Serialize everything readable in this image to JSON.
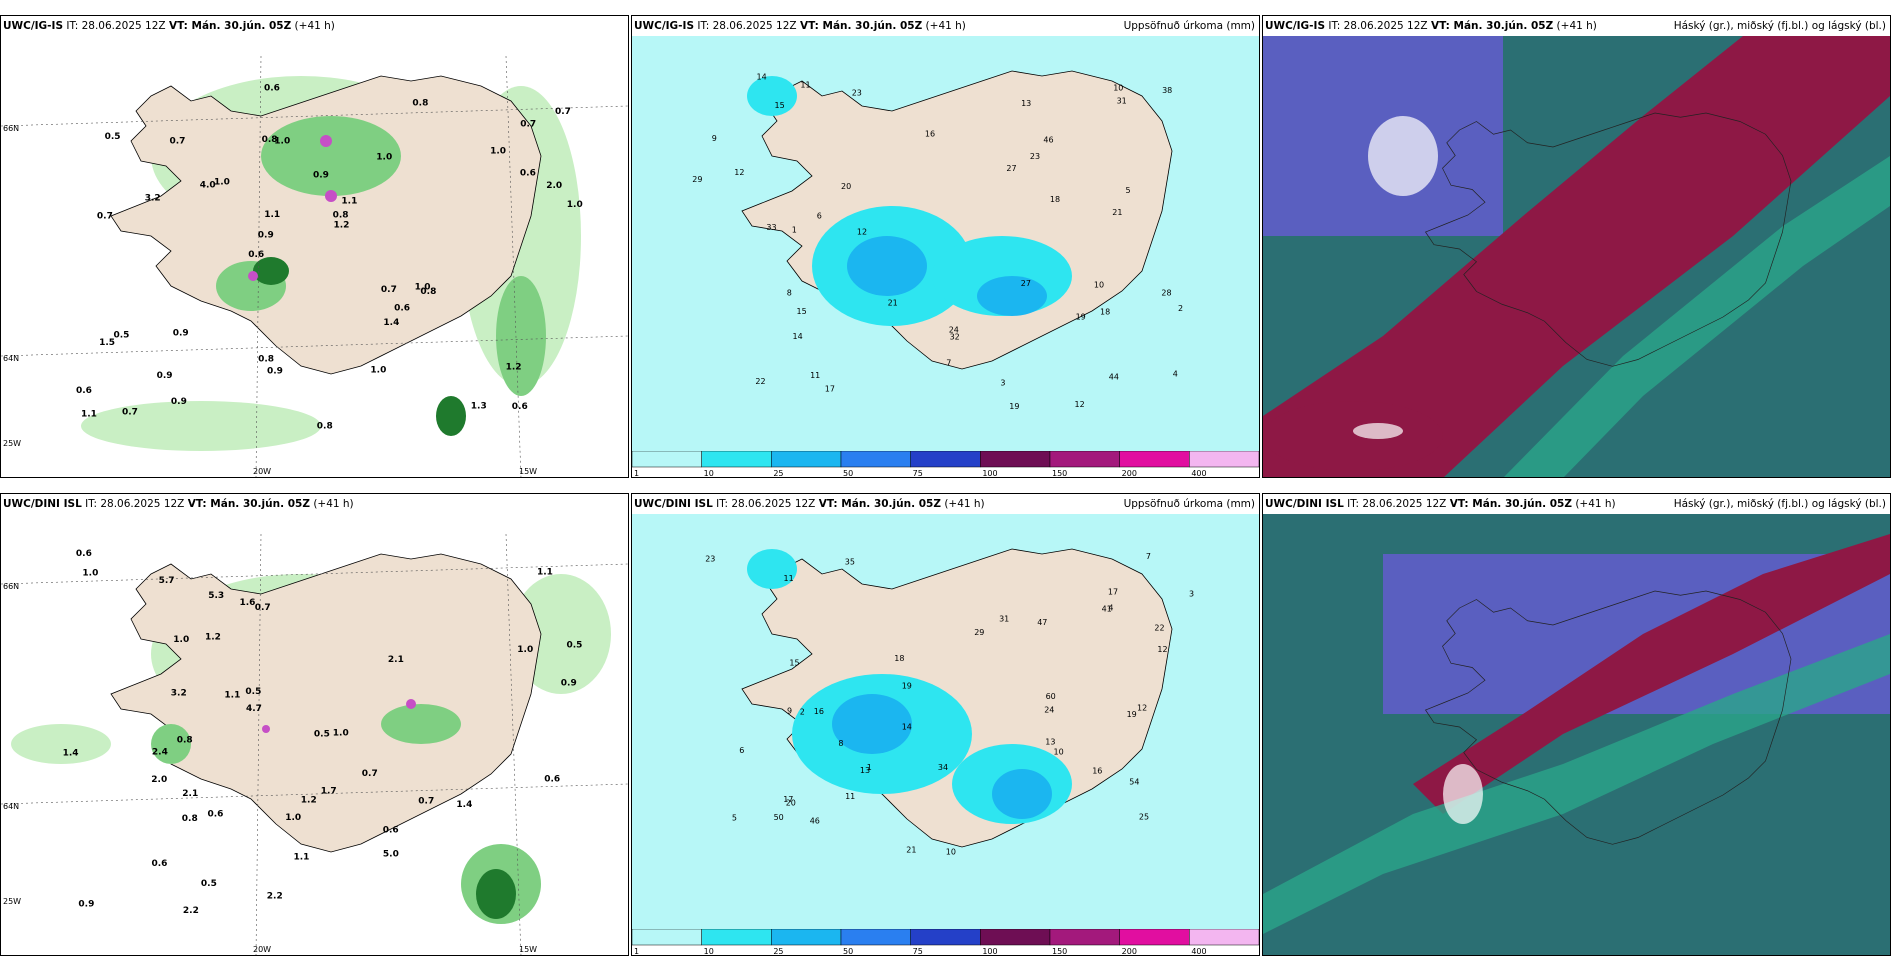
{
  "panels": [
    {
      "id": "p1",
      "model": "UWC/IG-IS",
      "it": "IT: 28.06.2025 12Z",
      "vt": "VT: Mán. 30.jún. 05Z",
      "lead": "(+41 h)",
      "field": "",
      "lat_labels": [
        "66N",
        "64N"
      ],
      "lon_labels": [
        "25W",
        "20W",
        "15W"
      ],
      "values": [
        "0.6",
        "0.7",
        "0.7",
        "0.6",
        "1.0",
        "0.7",
        "0.8",
        "0.9",
        "0.5",
        "1.0",
        "0.6",
        "0.9",
        "1.0",
        "1.1",
        "0.8",
        "0.5",
        "0.6",
        "1.0",
        "0.7",
        "0.6",
        "0.9",
        "0.8",
        "1.1",
        "0.7",
        "0.8",
        "0.9",
        "1.3",
        "1.2",
        "1.0",
        "0.8",
        "4.0",
        "3.2",
        "1.4",
        "0.9",
        "2.0",
        "0.8",
        "1.1",
        "0.9",
        "1.2",
        "1.5",
        "1.0",
        "0.7",
        "0.6",
        "1.0"
      ]
    },
    {
      "id": "p2",
      "model": "UWC/IG-IS",
      "it": "IT: 28.06.2025 12Z",
      "vt": "VT: Mán. 30.jún. 05Z",
      "lead": "(+41 h)",
      "field": "Uppsöfnuð úrkoma (mm)",
      "values": [
        "28",
        "12",
        "32",
        "22",
        "24",
        "20",
        "23",
        "46",
        "19",
        "21",
        "27",
        "31",
        "29",
        "18",
        "17",
        "15",
        "14",
        "11",
        "13",
        "16",
        "12",
        "10",
        "44",
        "33",
        "38",
        "27",
        "19",
        "21",
        "8",
        "6",
        "7",
        "5",
        "4",
        "3",
        "2",
        "1",
        "9",
        "10",
        "12",
        "14",
        "18",
        "23",
        "15",
        "11"
      ],
      "colorbar": {
        "ticks": [
          "1",
          "10",
          "25",
          "50",
          "75",
          "100",
          "150",
          "200",
          "400"
        ],
        "colors": [
          "#b7f7f7",
          "#2ee5f0",
          "#1bb6f0",
          "#2a7ff0",
          "#2440c8",
          "#6e0e54",
          "#a3197c",
          "#e10ea0",
          "#f3b6f0"
        ]
      }
    },
    {
      "id": "p3",
      "model": "UWC/IG-IS",
      "it": "IT: 28.06.2025 12Z",
      "vt": "VT: Mán. 30.jún. 05Z",
      "lead": "(+41 h)",
      "field": "Háský (gr.), miðský (fj.bl.) og lágský (bl.)"
    },
    {
      "id": "p4",
      "model": "UWC/DINI ISL",
      "it": "IT: 28.06.2025 12Z",
      "vt": "VT: Mán. 30.jún. 05Z",
      "lead": "(+41 h)",
      "field": "",
      "lat_labels": [
        "66N",
        "64N"
      ],
      "lon_labels": [
        "25W",
        "20W",
        "15W"
      ],
      "values": [
        "1.0",
        "0.6",
        "1.4",
        "1.1",
        "0.5",
        "0.6",
        "0.7",
        "0.6",
        "0.9",
        "0.7",
        "0.8",
        "1.0",
        "2.2",
        "2.0",
        "1.2",
        "1.1",
        "1.0",
        "0.6",
        "1.2",
        "0.5",
        "0.9",
        "1.1",
        "0.5",
        "0.8",
        "2.4",
        "1.7",
        "2.1",
        "1.4",
        "2.2",
        "1.6",
        "0.7",
        "5.3",
        "1.0",
        "0.6",
        "0.5",
        "3.2",
        "5.7",
        "4.7",
        "5.0",
        "2.1",
        "1.0"
      ]
    },
    {
      "id": "p5",
      "model": "UWC/DINI ISL",
      "it": "IT: 28.06.2025 12Z",
      "vt": "VT: Mán. 30.jún. 05Z",
      "lead": "(+41 h)",
      "field": "Uppsöfnuð úrkoma (mm)",
      "values": [
        "5",
        "10",
        "31",
        "24",
        "25",
        "41",
        "35",
        "34",
        "29",
        "46",
        "19",
        "20",
        "17",
        "13",
        "23",
        "18",
        "16",
        "19",
        "11",
        "12",
        "47",
        "54",
        "60",
        "50",
        "14",
        "22",
        "9",
        "8",
        "7",
        "6",
        "4",
        "3",
        "2",
        "1",
        "10",
        "12",
        "15",
        "16",
        "21",
        "13",
        "17",
        "11"
      ],
      "colorbar": {
        "ticks": [
          "1",
          "10",
          "25",
          "50",
          "75",
          "100",
          "150",
          "200",
          "400"
        ],
        "colors": [
          "#b7f7f7",
          "#2ee5f0",
          "#1bb6f0",
          "#2a7ff0",
          "#2440c8",
          "#6e0e54",
          "#a3197c",
          "#e10ea0",
          "#f3b6f0"
        ]
      }
    },
    {
      "id": "p6",
      "model": "UWC/DINI ISL",
      "it": "IT: 28.06.2025 12Z",
      "vt": "VT: Mán. 30.jún. 05Z",
      "lead": "(+41 h)",
      "field": "Háský (gr.), miðský (fj.bl.) og lágský (bl.)"
    }
  ]
}
